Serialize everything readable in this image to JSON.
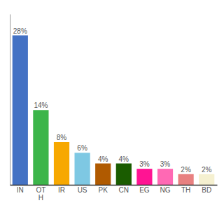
{
  "chart_data": {
    "type": "bar",
    "categories": [
      "IN",
      "OT\nH",
      "IR",
      "US",
      "PK",
      "CN",
      "EG",
      "NG",
      "TH",
      "BD"
    ],
    "values": [
      28,
      14,
      8,
      6,
      4,
      4,
      3,
      3,
      2,
      2
    ],
    "value_labels": [
      "28%",
      "14%",
      "8%",
      "6%",
      "4%",
      "4%",
      "3%",
      "3%",
      "2%",
      "2%"
    ],
    "colors": [
      "#4472c4",
      "#3cb54a",
      "#f7a800",
      "#7ec8e3",
      "#b05a00",
      "#1a5c00",
      "#ff1493",
      "#ff69b4",
      "#e88080",
      "#f5f0d0"
    ],
    "ylim": [
      0,
      32
    ],
    "data_labels": true,
    "tick_labels": "x",
    "grid": false
  }
}
